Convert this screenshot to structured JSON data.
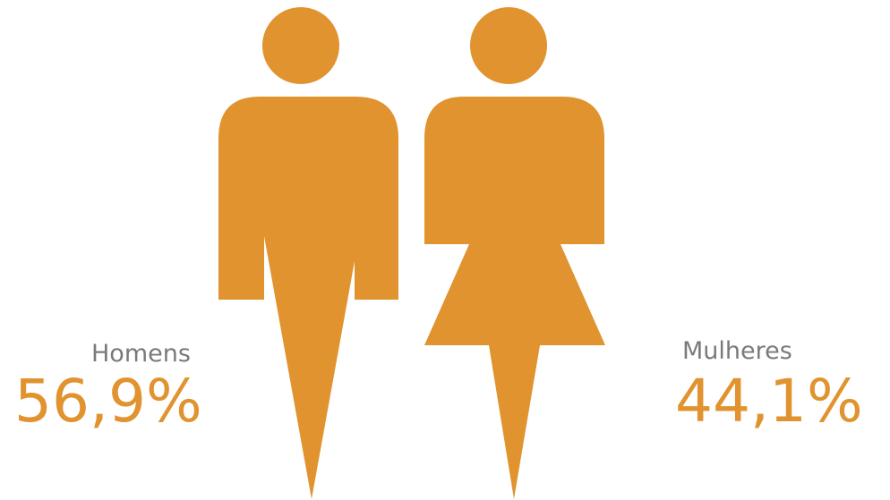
{
  "chart_data": {
    "type": "pictograph",
    "categories": [
      "Homens",
      "Mulheres"
    ],
    "values": [
      56.9,
      44.1
    ],
    "value_labels": [
      "56,9%",
      "44,1%"
    ],
    "unit": "%"
  },
  "colors": {
    "figure": "#e0932f",
    "value_text": "#e0932f",
    "label_text": "#7a7a7a"
  },
  "icons": {
    "men": "male-figure-icon",
    "women": "female-figure-icon"
  }
}
